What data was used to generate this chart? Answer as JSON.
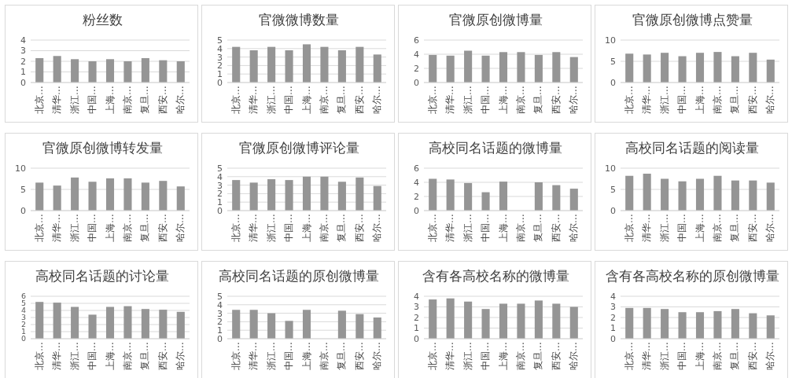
{
  "chart_data": [
    {
      "type": "bar",
      "title": "粉丝数",
      "categories": [
        "北京…",
        "清华…",
        "浙江…",
        "中国…",
        "上海…",
        "南京…",
        "复旦…",
        "西安…",
        "哈尔…"
      ],
      "values": [
        2.3,
        2.5,
        2.2,
        2.0,
        2.2,
        2.0,
        2.3,
        2.1,
        2.0
      ],
      "color": "#959595",
      "ylim": [
        0,
        4
      ],
      "yticks": [
        0,
        1,
        2,
        3,
        4
      ],
      "grid": "y"
    },
    {
      "type": "bar",
      "title": "官微微博数量",
      "categories": [
        "北京…",
        "清华…",
        "浙江…",
        "中国…",
        "上海…",
        "南京…",
        "复旦…",
        "西安…",
        "哈尔…"
      ],
      "values": [
        4.2,
        3.8,
        4.2,
        3.8,
        4.5,
        4.2,
        3.8,
        4.2,
        3.3
      ],
      "color": "#959595",
      "ylim": [
        0,
        5
      ],
      "yticks": [
        0,
        1,
        2,
        3,
        4,
        5
      ],
      "grid": "y"
    },
    {
      "type": "bar",
      "title": "官微原创微博量",
      "categories": [
        "北京…",
        "清华…",
        "浙江…",
        "中国…",
        "上海…",
        "南京…",
        "复旦…",
        "西安…",
        "哈尔…"
      ],
      "values": [
        3.9,
        3.8,
        4.5,
        3.8,
        4.3,
        4.3,
        3.9,
        4.3,
        3.6
      ],
      "color": "#959595",
      "ylim": [
        0,
        6
      ],
      "yticks": [
        0,
        2,
        4,
        6
      ],
      "grid": "y"
    },
    {
      "type": "bar",
      "title": "官微原创微博点赞量",
      "categories": [
        "北京…",
        "清华…",
        "浙江…",
        "中国…",
        "上海…",
        "南京…",
        "复旦…",
        "西安…",
        "哈尔…"
      ],
      "values": [
        6.8,
        6.6,
        7.0,
        6.2,
        7.0,
        7.2,
        6.2,
        7.0,
        5.4
      ],
      "color": "#959595",
      "ylim": [
        0,
        10
      ],
      "yticks": [
        0,
        5,
        10
      ],
      "grid": "y"
    },
    {
      "type": "bar",
      "title": "官微原创微博转发量",
      "categories": [
        "北京…",
        "清华…",
        "浙江…",
        "中国…",
        "上海…",
        "南京…",
        "复旦…",
        "西安…",
        "哈尔…"
      ],
      "values": [
        6.6,
        5.9,
        7.8,
        6.8,
        7.6,
        7.6,
        6.6,
        7.0,
        5.7
      ],
      "color": "#959595",
      "ylim": [
        0,
        10
      ],
      "yticks": [
        0,
        5,
        10
      ],
      "grid": "y"
    },
    {
      "type": "bar",
      "title": "官微原创微博评论量",
      "categories": [
        "北京…",
        "清华…",
        "浙江…",
        "中国…",
        "上海…",
        "南京…",
        "复旦…",
        "西安…",
        "哈尔…"
      ],
      "values": [
        3.6,
        3.3,
        3.7,
        3.6,
        4.0,
        4.0,
        3.4,
        3.9,
        2.9
      ],
      "color": "#959595",
      "ylim": [
        0,
        5
      ],
      "yticks": [
        0,
        1,
        2,
        3,
        4,
        5
      ],
      "grid": "y"
    },
    {
      "type": "bar",
      "title": "高校同名话题的微博量",
      "categories": [
        "北京…",
        "清华…",
        "浙江…",
        "中国…",
        "上海…",
        "南京…",
        "复旦…",
        "西安…",
        "哈尔…"
      ],
      "values": [
        4.5,
        4.4,
        3.9,
        2.6,
        4.1,
        null,
        4.0,
        3.6,
        3.1
      ],
      "color": "#959595",
      "ylim": [
        0,
        6
      ],
      "yticks": [
        0,
        2,
        4,
        6
      ],
      "grid": "y"
    },
    {
      "type": "bar",
      "title": "高校同名话题的阅读量",
      "categories": [
        "北京…",
        "清华…",
        "浙江…",
        "中国…",
        "上海…",
        "南京…",
        "复旦…",
        "西安…",
        "哈尔…"
      ],
      "values": [
        8.2,
        8.7,
        7.5,
        6.9,
        7.5,
        8.2,
        7.1,
        7.1,
        6.6
      ],
      "color": "#959595",
      "ylim": [
        0,
        10
      ],
      "yticks": [
        0,
        5,
        10
      ],
      "grid": "y"
    },
    {
      "type": "bar",
      "title": "高校同名话题的讨论量",
      "categories": [
        "北京…",
        "清华…",
        "浙江…",
        "中国…",
        "上海…",
        "南京…",
        "复旦…",
        "西安…",
        "哈尔…"
      ],
      "values": [
        5.2,
        5.1,
        4.5,
        3.4,
        4.5,
        4.6,
        4.2,
        4.1,
        3.8
      ],
      "color": "#959595",
      "ylim": [
        0,
        6
      ],
      "yticks": [
        0,
        1,
        2,
        3,
        4,
        5,
        6
      ],
      "grid": "y"
    },
    {
      "type": "bar",
      "title": "高校同名话题的原创微博量",
      "categories": [
        "北京…",
        "清华…",
        "浙江…",
        "中国…",
        "上海…",
        "南京…",
        "复旦…",
        "西安…",
        "哈尔…"
      ],
      "values": [
        3.4,
        3.4,
        3.0,
        2.1,
        3.4,
        null,
        3.3,
        2.9,
        2.5
      ],
      "color": "#959595",
      "ylim": [
        0,
        5
      ],
      "yticks": [
        0,
        1,
        2,
        3,
        4,
        5
      ],
      "grid": "y"
    },
    {
      "type": "bar",
      "title": "含有各高校名称的微博量",
      "categories": [
        "北京…",
        "清华…",
        "浙江…",
        "中国…",
        "上海…",
        "南京…",
        "复旦…",
        "西安…",
        "哈尔…"
      ],
      "values": [
        3.7,
        3.8,
        3.5,
        2.8,
        3.3,
        3.3,
        3.6,
        3.3,
        3.0
      ],
      "color": "#959595",
      "ylim": [
        0,
        4
      ],
      "yticks": [
        0,
        1,
        2,
        3,
        4
      ],
      "grid": "y"
    },
    {
      "type": "bar",
      "title": "含有各高校名称的原创微博量",
      "categories": [
        "北京…",
        "清华…",
        "浙江…",
        "中国…",
        "上海…",
        "南京…",
        "复旦…",
        "西安…",
        "哈尔…"
      ],
      "values": [
        2.9,
        2.9,
        2.8,
        2.5,
        2.5,
        2.6,
        2.8,
        2.4,
        2.2
      ],
      "color": "#959595",
      "ylim": [
        0,
        4
      ],
      "yticks": [
        0,
        1,
        2,
        3,
        4
      ],
      "grid": "y"
    }
  ]
}
